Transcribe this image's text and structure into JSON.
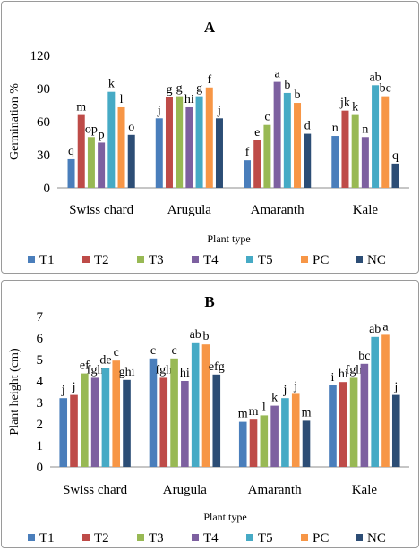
{
  "chart_data": [
    {
      "type": "bar",
      "title": "A",
      "ylabel": "Germination %",
      "xlabel": "Plant type",
      "ylim": [
        0,
        120
      ],
      "yticks": [
        0,
        30,
        60,
        90,
        120
      ],
      "grid": false,
      "legend_placement": "bottom",
      "categories": [
        "Swiss chard",
        "Arugula",
        "Amaranth",
        "Kale"
      ],
      "series": [
        {
          "name": "T1",
          "color": "#4a7ebb",
          "values": [
            26,
            63,
            25,
            47
          ],
          "labels": [
            "q",
            "j",
            "f",
            "n"
          ]
        },
        {
          "name": "T2",
          "color": "#be4b48",
          "values": [
            66,
            82,
            43,
            70
          ],
          "labels": [
            "m",
            "g",
            "e",
            "jk"
          ]
        },
        {
          "name": "T3",
          "color": "#98b954",
          "values": [
            46,
            83,
            57,
            66
          ],
          "labels": [
            "op",
            "g",
            "c",
            "k"
          ]
        },
        {
          "name": "T4",
          "color": "#7d60a0",
          "values": [
            41,
            73,
            96,
            46
          ],
          "labels": [
            "p",
            "hi",
            "a",
            "n"
          ]
        },
        {
          "name": "T5",
          "color": "#46aac5",
          "values": [
            87,
            83,
            86,
            93
          ],
          "labels": [
            "k",
            "g",
            "b",
            "ab"
          ]
        },
        {
          "name": "PC",
          "color": "#f79646",
          "values": [
            73,
            91,
            77,
            83
          ],
          "labels": [
            "l",
            "f",
            "b",
            "bc"
          ]
        },
        {
          "name": "NC",
          "color": "#2c4d75",
          "values": [
            48,
            63,
            49,
            22
          ],
          "labels": [
            "o",
            "j",
            "d",
            "q"
          ]
        }
      ]
    },
    {
      "type": "bar",
      "title": "B",
      "ylabel": "Plant height (cm)",
      "xlabel": "Plant type",
      "ylim": [
        0,
        7
      ],
      "yticks": [
        0,
        1,
        2,
        3,
        4,
        5,
        6,
        7
      ],
      "grid": false,
      "legend_placement": "bottom",
      "categories": [
        "Swiss chard",
        "Arugula",
        "Amaranth",
        "Kale"
      ],
      "series": [
        {
          "name": "T1",
          "color": "#4a7ebb",
          "values": [
            3.2,
            5.05,
            2.1,
            3.8
          ],
          "labels": [
            "j",
            "c",
            "m",
            "i"
          ]
        },
        {
          "name": "T2",
          "color": "#be4b48",
          "values": [
            3.35,
            4.15,
            2.2,
            3.95
          ],
          "labels": [
            "j",
            "fgh",
            "m",
            "hi"
          ]
        },
        {
          "name": "T3",
          "color": "#98b954",
          "values": [
            4.35,
            5.05,
            2.4,
            4.15
          ],
          "labels": [
            "ef",
            "c",
            "l",
            "fgh"
          ]
        },
        {
          "name": "T4",
          "color": "#7d60a0",
          "values": [
            4.15,
            4.0,
            2.85,
            4.8
          ],
          "labels": [
            "fgh",
            "hi",
            "k",
            "bc"
          ]
        },
        {
          "name": "T5",
          "color": "#46aac5",
          "values": [
            4.6,
            5.8,
            3.2,
            6.05
          ],
          "labels": [
            "de",
            "ab",
            "j",
            "ab"
          ]
        },
        {
          "name": "PC",
          "color": "#f79646",
          "values": [
            4.95,
            5.7,
            3.4,
            6.15
          ],
          "labels": [
            "c",
            "b",
            "j",
            "a"
          ]
        },
        {
          "name": "NC",
          "color": "#2c4d75",
          "values": [
            4.05,
            4.3,
            2.15,
            3.35
          ],
          "labels": [
            "ghi",
            "efg",
            "m",
            "j"
          ]
        }
      ]
    }
  ]
}
